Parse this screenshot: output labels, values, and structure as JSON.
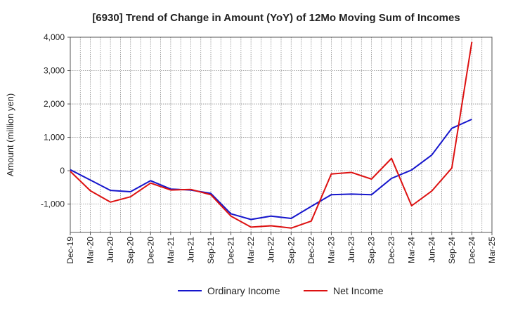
{
  "chart_data": {
    "type": "line",
    "title": "[6930]  Trend of Change in Amount (YoY) of 12Mo Moving Sum of Incomes",
    "xlabel": "",
    "ylabel": "Amount (million yen)",
    "ylim": [
      -1850,
      4000
    ],
    "yticks": [
      4000,
      3000,
      2000,
      1000,
      0,
      -1000
    ],
    "ytick_labels": [
      "4,000",
      "3,000",
      "2,000",
      "1,000",
      "0",
      "-1,000"
    ],
    "categories": [
      "Dec-19",
      "Mar-20",
      "Jun-20",
      "Sep-20",
      "Dec-20",
      "Mar-21",
      "Jun-21",
      "Sep-21",
      "Dec-21",
      "Mar-22",
      "Jun-22",
      "Sep-22",
      "Dec-22",
      "Mar-23",
      "Jun-23",
      "Sep-23",
      "Dec-23",
      "Mar-24",
      "Jun-24",
      "Sep-24",
      "Dec-24",
      "Mar-25"
    ],
    "grid": true,
    "legend_position": "bottom",
    "series": [
      {
        "name": "Ordinary Income",
        "color": "#1515cc",
        "values": [
          30,
          -280,
          -590,
          -630,
          -300,
          -550,
          -580,
          -680,
          -1290,
          -1460,
          -1360,
          -1430,
          -1070,
          -720,
          -700,
          -720,
          -230,
          20,
          470,
          1270,
          1540,
          null
        ]
      },
      {
        "name": "Net Income",
        "color": "#dd1111",
        "values": [
          -20,
          -600,
          -940,
          -780,
          -370,
          -580,
          -560,
          -720,
          -1360,
          -1690,
          -1650,
          -1720,
          -1510,
          -100,
          -50,
          -250,
          370,
          -1050,
          -610,
          80,
          3860,
          null
        ]
      }
    ]
  }
}
